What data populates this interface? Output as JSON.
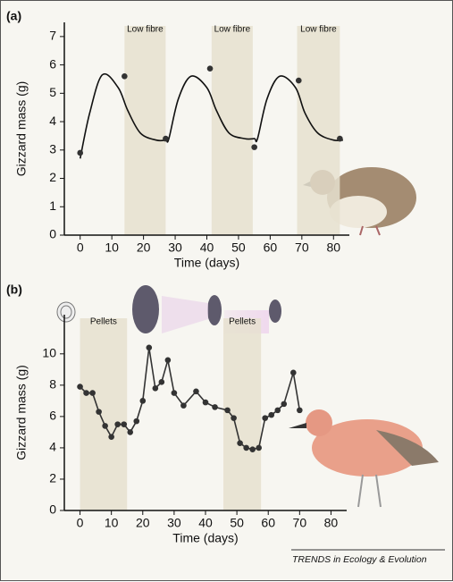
{
  "chart_data": [
    {
      "type": "line",
      "panel": "(a)",
      "ylabel": "Gizzard mass (g)",
      "xlabel": "Time (days)",
      "xlim": [
        -5,
        85
      ],
      "xticks": [
        0,
        10,
        20,
        30,
        40,
        50,
        60,
        70,
        80
      ],
      "ylim": [
        0,
        7.5
      ],
      "yticks": [
        0,
        1,
        2,
        3,
        4,
        5,
        6,
        7
      ],
      "regions": [
        {
          "label": "Low fibre",
          "x": [
            14,
            27
          ]
        },
        {
          "label": "Low fibre",
          "x": [
            41.5,
            54.5
          ]
        },
        {
          "label": "Low fibre",
          "x": [
            68.5,
            82
          ]
        }
      ],
      "series": [
        {
          "color": "#111",
          "markers": false,
          "line": true,
          "smooth": true,
          "x": [
            0,
            3,
            7,
            12,
            15,
            19,
            24,
            27,
            28,
            31,
            35,
            40,
            43,
            47,
            52,
            55,
            56,
            59,
            63,
            68,
            71,
            75,
            80,
            83
          ],
          "values": [
            2.7,
            4.3,
            5.65,
            5.2,
            4.4,
            3.6,
            3.35,
            3.35,
            3.4,
            4.8,
            5.6,
            5.2,
            4.4,
            3.6,
            3.4,
            3.4,
            3.4,
            4.8,
            5.6,
            5.2,
            4.3,
            3.6,
            3.35,
            3.35
          ]
        },
        {
          "color": "#333",
          "markers": true,
          "line": false,
          "smooth": false,
          "x": [
            0,
            14,
            27,
            41,
            55,
            69,
            82
          ],
          "values": [
            2.9,
            5.6,
            3.4,
            5.87,
            3.1,
            5.45,
            3.4
          ]
        }
      ]
    },
    {
      "type": "line",
      "panel": "(b)",
      "ylabel": "Gizzard mass (g)",
      "xlabel": "Time (days)",
      "xlim": [
        -5,
        85
      ],
      "xticks": [
        0,
        10,
        20,
        30,
        40,
        50,
        60,
        70,
        80
      ],
      "ylim": [
        0,
        12.5
      ],
      "yticks": [
        0,
        2,
        4,
        6,
        8,
        10
      ],
      "regions": [
        {
          "label": "Pellets",
          "x": [
            0,
            15
          ]
        },
        {
          "label": "Pellets",
          "x": [
            45.7,
            57.7
          ]
        }
      ],
      "series": [
        {
          "color": "#333",
          "markers": true,
          "line": true,
          "smooth": false,
          "x": [
            0,
            2,
            4,
            6,
            8,
            10,
            12,
            14,
            16,
            18,
            20,
            22,
            24,
            26,
            28,
            30,
            33,
            37,
            40,
            43,
            47,
            49,
            51,
            53,
            55,
            57,
            59,
            61,
            63,
            65,
            68,
            70
          ],
          "values": [
            7.9,
            7.5,
            7.5,
            6.3,
            5.4,
            4.7,
            5.5,
            5.5,
            5.0,
            5.7,
            7.0,
            10.4,
            7.8,
            8.2,
            9.6,
            7.5,
            6.7,
            7.6,
            6.9,
            6.6,
            6.4,
            5.9,
            4.3,
            4.0,
            3.9,
            4.0,
            5.9,
            6.1,
            6.4,
            6.8,
            8.8,
            6.4
          ]
        }
      ]
    }
  ],
  "footer": "TRENDS in Ecology & Evolution"
}
